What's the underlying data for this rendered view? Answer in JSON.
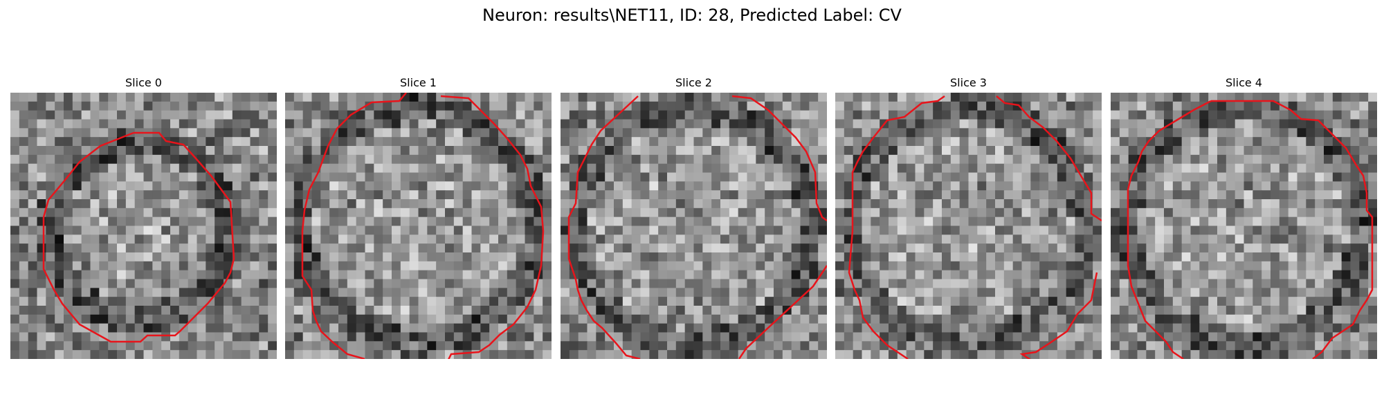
{
  "figure": {
    "title": "Neuron: results\\NET11, ID: 28, Predicted Label: CV"
  },
  "slices": [
    {
      "label": "Slice 0",
      "contour_color": "#e8141b"
    },
    {
      "label": "Slice 1",
      "contour_color": "#e8141b"
    },
    {
      "label": "Slice 2",
      "contour_color": "#e8141b"
    },
    {
      "label": "Slice 3",
      "contour_color": "#e8141b"
    },
    {
      "label": "Slice 4",
      "contour_color": "#e8141b"
    }
  ]
}
